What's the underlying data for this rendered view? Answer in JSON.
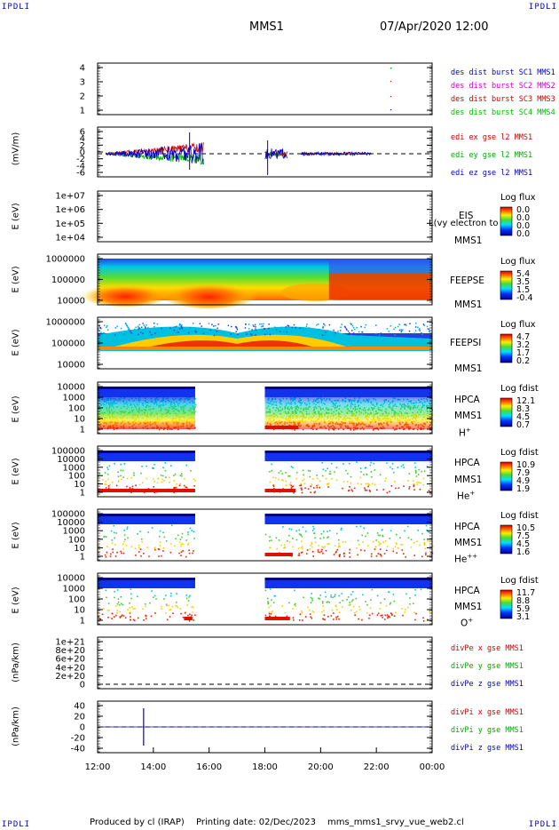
{
  "corners": {
    "tl": "IPDLI",
    "tr": "IPDLI",
    "bl": "IPDLI",
    "br": "IPDLI"
  },
  "header": {
    "spacecraft": "MMS1",
    "datetime": "07/Apr/2020 12:00"
  },
  "footer": {
    "produced_by": "Produced by cl (IRAP)",
    "printing_date": "Printing date: 02/Dec/2023",
    "script_name": "mms_mms1_srvy_vue_web2.cl"
  },
  "x_ticks": [
    "12:00",
    "14:00",
    "16:00",
    "18:00",
    "20:00",
    "22:00",
    "00:00"
  ],
  "panels": {
    "burst": {
      "y_ticks": [
        "4",
        "3",
        "2",
        "1"
      ],
      "legend": [
        {
          "text": "des dist burst SC1 MMS1",
          "color": "#0000cc"
        },
        {
          "text": "des dist burst SC2 MMS2",
          "color": "#cc00cc"
        },
        {
          "text": "des dist burst SC3 MMS3",
          "color": "#cc0000"
        },
        {
          "text": "des dist burst SC4 MMS4",
          "color": "#00bb00"
        }
      ]
    },
    "edi": {
      "ylabel": "(mV/m)",
      "y_ticks": [
        "6",
        "4",
        "2",
        "0",
        "-2",
        "-4",
        "-6"
      ],
      "legend": [
        {
          "text": "edi ex gse l2 MMS1",
          "color": "#cc0000"
        },
        {
          "text": "edi ey gse l2 MMS1",
          "color": "#00aa00"
        },
        {
          "text": "edi ez gse l2 MMS1",
          "color": "#0000cc"
        }
      ]
    },
    "eis": {
      "ylabel": "E (eV)",
      "y_ticks": [
        "1e+07",
        "1e+06",
        "1e+05",
        "1e+04"
      ],
      "side": [
        "EIS",
        "MMS1"
      ],
      "overlay": "L(vy electron to",
      "cb_title": "Log flux",
      "cb_vals": [
        "0.0",
        "0.0",
        "0.0",
        "0.0"
      ]
    },
    "feepse": {
      "ylabel": "E (eV)",
      "y_ticks": [
        "1000000",
        "100000",
        "10000"
      ],
      "side": [
        "FEEPSE",
        "MMS1"
      ],
      "cb_title": "Log flux",
      "cb_vals": [
        "5.4",
        "3.5",
        "1.5",
        "-0.4"
      ]
    },
    "feepsi": {
      "ylabel": "E (eV)",
      "y_ticks": [
        "1000000",
        "100000",
        "10000"
      ],
      "side": [
        "FEEPSI",
        "MMS1"
      ],
      "cb_title": "Log flux",
      "cb_vals": [
        "4.7",
        "3.2",
        "1.7",
        "0.2"
      ]
    },
    "hpca_h": {
      "ylabel": "E (eV)",
      "y_ticks": [
        "10000",
        "1000",
        "100",
        "10",
        "1"
      ],
      "side": [
        "HPCA",
        "MMS1"
      ],
      "species": "H",
      "species_sup": "+",
      "cb_title": "Log fdist",
      "cb_vals": [
        "12.1",
        "8.3",
        "4.5",
        "0.7"
      ]
    },
    "hpca_he": {
      "ylabel": "E (eV)",
      "y_ticks": [
        "100000",
        "10000",
        "1000",
        "100",
        "10",
        "1"
      ],
      "side": [
        "HPCA",
        "MMS1"
      ],
      "species": "He",
      "species_sup": "+",
      "cb_title": "Log fdist",
      "cb_vals": [
        "10.9",
        "7.9",
        "4.9",
        "1.9"
      ]
    },
    "hpca_hepp": {
      "ylabel": "E (eV)",
      "y_ticks": [
        "100000",
        "10000",
        "1000",
        "100",
        "10",
        "1"
      ],
      "side": [
        "HPCA",
        "MMS1"
      ],
      "species": "He",
      "species_sup": "++",
      "cb_title": "Log fdist",
      "cb_vals": [
        "10.5",
        "7.5",
        "4.5",
        "1.6"
      ]
    },
    "hpca_o": {
      "ylabel": "E (eV)",
      "y_ticks": [
        "10000",
        "1000",
        "100",
        "10",
        "1"
      ],
      "side": [
        "HPCA",
        "MMS1"
      ],
      "species": "O",
      "species_sup": "+",
      "cb_title": "Log fdist",
      "cb_vals": [
        "11.7",
        "8.8",
        "5.9",
        "3.1"
      ]
    },
    "divpe": {
      "ylabel": "(nPa/km)",
      "y_ticks": [
        "1e+21",
        "8e+20",
        "6e+20",
        "4e+20",
        "2e+20",
        "0"
      ],
      "legend": [
        {
          "text": "divPe x gse MMS1",
          "color": "#cc0000"
        },
        {
          "text": "divPe y gse MMS1",
          "color": "#00aa00"
        },
        {
          "text": "divPe z gse MMS1",
          "color": "#0000cc"
        }
      ]
    },
    "divpi": {
      "ylabel": "(nPa/km)",
      "y_ticks": [
        "40",
        "20",
        "0",
        "-20",
        "-40"
      ],
      "legend": [
        {
          "text": "divPi x gse MMS1",
          "color": "#cc0000"
        },
        {
          "text": "divPi y gse MMS1",
          "color": "#00aa00"
        },
        {
          "text": "divPi z gse MMS1",
          "color": "#0000cc"
        }
      ]
    }
  },
  "chart_data": {
    "type": "heatmap",
    "x_range": [
      "12:00",
      "00:00"
    ],
    "x_hours": [
      12,
      14,
      16,
      18,
      20,
      22,
      24
    ],
    "divpi_spike": {
      "time_hr": 13.65,
      "value_range": [
        -35,
        35
      ]
    },
    "edi_activity": [
      [
        12.3,
        15.8
      ],
      [
        18.0,
        18.8
      ],
      [
        19.3,
        21.8
      ]
    ],
    "hpca_coverage": [
      [
        12.0,
        15.5
      ],
      [
        18.0,
        24.0
      ]
    ]
  }
}
